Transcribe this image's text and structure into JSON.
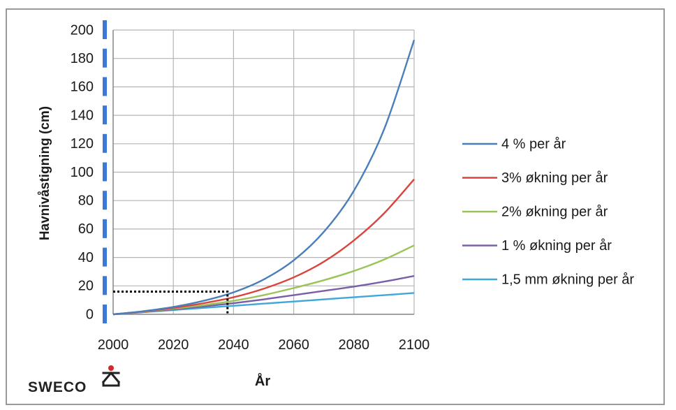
{
  "logo": {
    "text": "SWECO"
  },
  "chart_data": {
    "type": "line",
    "title": "",
    "xlabel": "År",
    "ylabel": "Havnivåstigning (cm)",
    "xlim": [
      2000,
      2100
    ],
    "ylim": [
      0,
      200
    ],
    "xticks": [
      2000,
      2020,
      2040,
      2060,
      2080,
      2100
    ],
    "yticks": [
      0,
      20,
      40,
      60,
      80,
      100,
      120,
      140,
      160,
      180,
      200
    ],
    "grid": true,
    "legend_position": "right",
    "x": [
      2000,
      2010,
      2020,
      2030,
      2040,
      2050,
      2060,
      2070,
      2080,
      2090,
      2100
    ],
    "series": [
      {
        "name": "4 % per år",
        "color": "#4a7ebb",
        "values": [
          0,
          2.2,
          5.2,
          9.5,
          15.5,
          24.5,
          38,
          58,
          87,
          130,
          193
        ]
      },
      {
        "name": "3% økning per år",
        "color": "#d9453c",
        "values": [
          0,
          2.0,
          4.5,
          7.8,
          12,
          18,
          26,
          37,
          52,
          71,
          95
        ]
      },
      {
        "name": "2% økning per år",
        "color": "#9bc357",
        "values": [
          0,
          1.8,
          4.0,
          6.5,
          9.5,
          13.5,
          18.5,
          24,
          30.5,
          38.5,
          48.5
        ]
      },
      {
        "name": "1 % økning per år",
        "color": "#7a5ea8",
        "values": [
          0,
          1.6,
          3.5,
          5.5,
          7.8,
          10.5,
          13.5,
          16.5,
          19.5,
          23,
          27
        ]
      },
      {
        "name": "1,5 mm økning per år",
        "color": "#3fa8d8",
        "values": [
          0,
          1.5,
          3.0,
          4.5,
          6.0,
          7.5,
          9.0,
          10.5,
          12.0,
          13.5,
          15.0
        ]
      }
    ],
    "annotations": [
      {
        "type": "dotted-box",
        "x": [
          2000,
          2038
        ],
        "y": [
          0,
          16
        ],
        "color": "#000000"
      }
    ]
  }
}
